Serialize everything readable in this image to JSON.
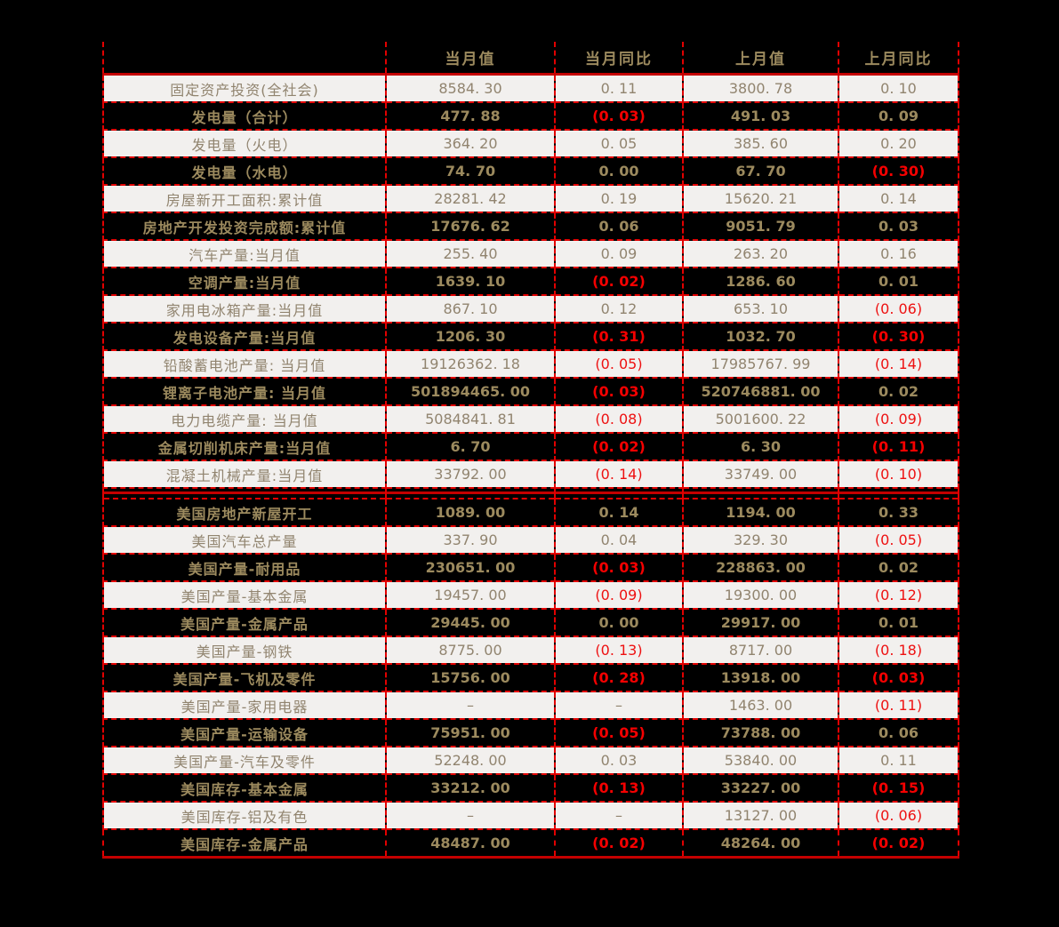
{
  "theme": {
    "page_background": "#000000",
    "light_row_background": "#f2f0ee",
    "light_row_text": "#91846f",
    "dark_row_background": "#000000",
    "gold_text": "#9c8a5e",
    "negative_text": "#f50000",
    "grid_border": "#e20000",
    "solid_rule": "#c40000"
  },
  "chart_data": {
    "type": "table",
    "columns": [
      "",
      "当月值",
      "当月同比",
      "上月值",
      "上月同比"
    ],
    "separator_after_index": 14,
    "rows": [
      {
        "label": "固定资产投资(全社会)",
        "values": [
          "8584. 30",
          "0. 11",
          "3800. 78",
          "0. 10"
        ]
      },
      {
        "label": "发电量（合计）",
        "values": [
          "477. 88",
          "(0. 03)",
          "491. 03",
          "0. 09"
        ]
      },
      {
        "label": "发电量（火电）",
        "values": [
          "364. 20",
          "0. 05",
          "385. 60",
          "0. 20"
        ]
      },
      {
        "label": "发电量（水电）",
        "values": [
          "74. 70",
          "0. 00",
          "67. 70",
          "(0. 30)"
        ]
      },
      {
        "label": "房屋新开工面积:累计值",
        "values": [
          "28281. 42",
          "0. 19",
          "15620. 21",
          "0. 14"
        ]
      },
      {
        "label": "房地产开发投资完成额:累计值",
        "values": [
          "17676. 62",
          "0. 06",
          "9051. 79",
          "0. 03"
        ]
      },
      {
        "label": "汽车产量:当月值",
        "values": [
          "255. 40",
          "0. 09",
          "263. 20",
          "0. 16"
        ]
      },
      {
        "label": "空调产量:当月值",
        "values": [
          "1639. 10",
          "(0. 02)",
          "1286. 60",
          "0. 01"
        ]
      },
      {
        "label": "家用电冰箱产量:当月值",
        "values": [
          "867. 10",
          "0. 12",
          "653. 10",
          "(0. 06)"
        ]
      },
      {
        "label": "发电设备产量:当月值",
        "values": [
          "1206. 30",
          "(0. 31)",
          "1032. 70",
          "(0. 30)"
        ]
      },
      {
        "label": "铅酸蓄电池产量: 当月值",
        "values": [
          "19126362. 18",
          "(0. 05)",
          "17985767. 99",
          "(0. 14)"
        ]
      },
      {
        "label": "锂离子电池产量: 当月值",
        "values": [
          "501894465. 00",
          "(0. 03)",
          "520746881. 00",
          "0. 02"
        ]
      },
      {
        "label": "电力电缆产量: 当月值",
        "values": [
          "5084841. 81",
          "(0. 08)",
          "5001600. 22",
          "(0. 09)"
        ]
      },
      {
        "label": "金属切削机床产量:当月值",
        "values": [
          "6. 70",
          "(0. 02)",
          "6. 30",
          "(0. 11)"
        ]
      },
      {
        "label": "混凝土机械产量:当月值",
        "values": [
          "33792. 00",
          "(0. 14)",
          "33749. 00",
          "(0. 10)"
        ]
      },
      {
        "label": "美国房地产新屋开工",
        "values": [
          "1089. 00",
          "0. 14",
          "1194. 00",
          "0. 33"
        ]
      },
      {
        "label": "美国汽车总产量",
        "values": [
          "337. 90",
          "0. 04",
          "329. 30",
          "(0. 05)"
        ]
      },
      {
        "label": "美国产量-耐用品",
        "values": [
          "230651. 00",
          "(0. 03)",
          "228863. 00",
          "0. 02"
        ]
      },
      {
        "label": "美国产量-基本金属",
        "values": [
          "19457. 00",
          "(0. 09)",
          "19300. 00",
          "(0. 12)"
        ]
      },
      {
        "label": "美国产量-金属产品",
        "values": [
          "29445. 00",
          "0. 00",
          "29917. 00",
          "0. 01"
        ]
      },
      {
        "label": "美国产量-钢铁",
        "values": [
          "8775. 00",
          "(0. 13)",
          "8717. 00",
          "(0. 18)"
        ]
      },
      {
        "label": "美国产量-飞机及零件",
        "values": [
          "15756. 00",
          "(0. 28)",
          "13918. 00",
          "(0. 03)"
        ]
      },
      {
        "label": "美国产量-家用电器",
        "values": [
          "–",
          "–",
          "1463. 00",
          "(0. 11)"
        ]
      },
      {
        "label": "美国产量-运输设备",
        "values": [
          "75951. 00",
          "(0. 05)",
          "73788. 00",
          "0. 06"
        ]
      },
      {
        "label": "美国产量-汽车及零件",
        "values": [
          "52248. 00",
          "0. 03",
          "53840. 00",
          "0. 11"
        ]
      },
      {
        "label": "美国库存-基本金属",
        "values": [
          "33212. 00",
          "(0. 13)",
          "33227. 00",
          "(0. 15)"
        ]
      },
      {
        "label": "美国库存-铝及有色",
        "values": [
          "–",
          "–",
          "13127. 00",
          "(0. 06)"
        ]
      },
      {
        "label": "美国库存-金属产品",
        "values": [
          "48487. 00",
          "(0. 02)",
          "48264. 00",
          "(0. 02)"
        ]
      }
    ]
  }
}
